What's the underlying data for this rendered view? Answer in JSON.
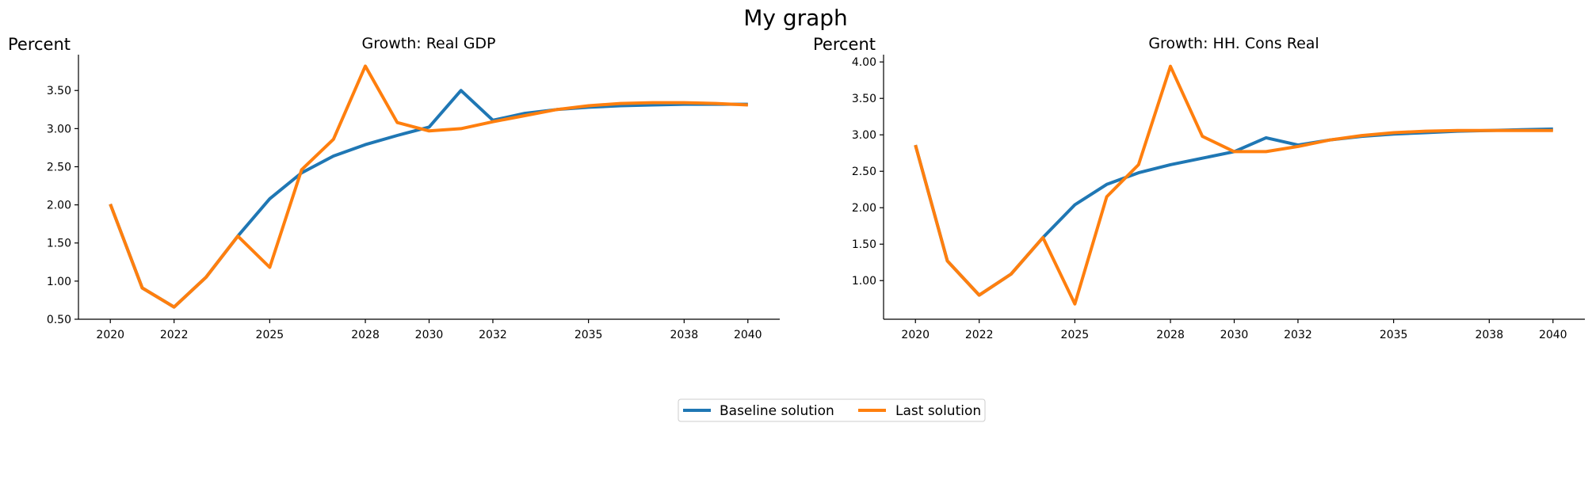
{
  "chart_data": {
    "title": "My graph",
    "legend": {
      "placement": "bottom-center",
      "entries": [
        {
          "name": "Baseline solution",
          "color": "#1f77b4"
        },
        {
          "name": "Last solution",
          "color": "#ff7f0e"
        }
      ]
    },
    "colors": {
      "baseline": "#1f77b4",
      "last": "#ff7f0e"
    },
    "panels": [
      {
        "type": "line",
        "title": "Growth: Real GDP",
        "ylabel": "Percent",
        "x": [
          2020,
          2021,
          2022,
          2023,
          2024,
          2025,
          2026,
          2027,
          2028,
          2029,
          2030,
          2031,
          2032,
          2033,
          2034,
          2035,
          2036,
          2037,
          2038,
          2039,
          2040
        ],
        "xlim": [
          2019,
          2041
        ],
        "ylim": [
          0.5,
          3.97
        ],
        "xticks": [
          2020,
          2022,
          2025,
          2028,
          2030,
          2032,
          2035,
          2038,
          2040
        ],
        "xtick_labels": [
          "2020",
          "2022",
          "2025",
          "2028",
          "2030",
          "2032",
          "2035",
          "2038",
          "2040"
        ],
        "yticks": [
          0.5,
          1.0,
          1.5,
          2.0,
          2.5,
          3.0,
          3.5
        ],
        "ytick_labels": [
          "0.50",
          "1.00",
          "1.50",
          "2.00",
          "2.50",
          "3.00",
          "3.50"
        ],
        "grid": false,
        "series": [
          {
            "name": "Baseline solution",
            "values": [
              2.01,
              0.91,
              0.66,
              1.05,
              1.59,
              2.08,
              2.42,
              2.64,
              2.79,
              2.91,
              3.02,
              3.5,
              3.11,
              3.2,
              3.25,
              3.28,
              3.3,
              3.31,
              3.32,
              3.32,
              3.32
            ]
          },
          {
            "name": "Last solution",
            "values": [
              2.01,
              0.91,
              0.66,
              1.05,
              1.59,
              1.18,
              2.46,
              2.86,
              3.82,
              3.08,
              2.97,
              3.0,
              3.09,
              3.17,
              3.25,
              3.3,
              3.33,
              3.34,
              3.34,
              3.33,
              3.31
            ]
          }
        ]
      },
      {
        "type": "line",
        "title": "Growth: HH. Cons Real",
        "ylabel": "Percent",
        "x": [
          2020,
          2021,
          2022,
          2023,
          2024,
          2025,
          2026,
          2027,
          2028,
          2029,
          2030,
          2031,
          2032,
          2033,
          2034,
          2035,
          2036,
          2037,
          2038,
          2039,
          2040
        ],
        "xlim": [
          2019,
          2041
        ],
        "ylim": [
          0.47,
          4.1
        ],
        "xticks": [
          2020,
          2022,
          2025,
          2028,
          2030,
          2032,
          2035,
          2038,
          2040
        ],
        "xtick_labels": [
          "2020",
          "2022",
          "2025",
          "2028",
          "2030",
          "2032",
          "2035",
          "2038",
          "2040"
        ],
        "yticks": [
          1.0,
          1.5,
          2.0,
          2.5,
          3.0,
          3.5,
          4.0
        ],
        "ytick_labels": [
          "1.00",
          "1.50",
          "2.00",
          "2.50",
          "3.00",
          "3.50",
          "4.00"
        ],
        "grid": false,
        "series": [
          {
            "name": "Baseline solution",
            "values": [
              2.86,
              1.27,
              0.8,
              1.09,
              1.59,
              2.04,
              2.32,
              2.48,
              2.59,
              2.68,
              2.77,
              2.96,
              2.86,
              2.93,
              2.98,
              3.01,
              3.03,
              3.05,
              3.06,
              3.07,
              3.08
            ]
          },
          {
            "name": "Last solution",
            "values": [
              2.86,
              1.27,
              0.8,
              1.09,
              1.59,
              0.68,
              2.15,
              2.59,
              3.94,
              2.98,
              2.77,
              2.77,
              2.84,
              2.93,
              2.99,
              3.03,
              3.05,
              3.06,
              3.06,
              3.06,
              3.06
            ]
          }
        ]
      }
    ]
  }
}
